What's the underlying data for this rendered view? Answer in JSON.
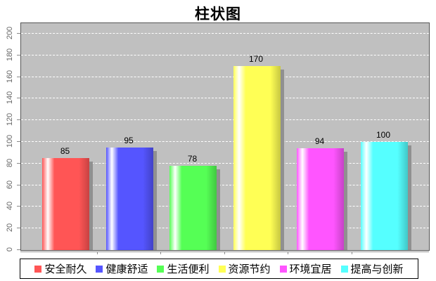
{
  "title": "柱状图",
  "chart_data": {
    "type": "bar",
    "title": "柱状图",
    "categories": [
      "安全耐久",
      "健康舒适",
      "生活便利",
      "资源节约",
      "环境宜居",
      "提高与创新"
    ],
    "values": [
      85,
      95,
      78,
      170,
      94,
      100
    ],
    "bar_value_labels": [
      "85",
      "95",
      "78",
      "170",
      "94",
      "100"
    ],
    "series_colors": [
      "#FF5555",
      "#5555FF",
      "#55FF55",
      "#FFFF55",
      "#FF55FF",
      "#55FFFF"
    ],
    "xlabel": "",
    "ylabel": "",
    "ylim": [
      0,
      200
    ],
    "ytick_step": 20,
    "yticks": [
      0,
      20,
      40,
      60,
      80,
      100,
      120,
      140,
      160,
      180,
      200
    ],
    "grid": "horizontal white dashed lines on gray plot background",
    "legend_position": "bottom",
    "legend_labels": [
      "安全耐久",
      "健康舒适",
      "生活便利",
      "资源节约",
      "环境宜居",
      "提高与创新"
    ],
    "colors": {
      "plot_background": "#C0C0C0",
      "gridline": "#FFFFFF",
      "plot_border": "#565656",
      "axis_line": "#8f8f8f",
      "bar_shadow": "#909090",
      "tick_label_text": "#666666",
      "title_text": "#000000",
      "value_label_text": "#000000",
      "legend_border": "#000000",
      "legend_text": "#000000",
      "page_background": "#FFFFFF"
    }
  }
}
